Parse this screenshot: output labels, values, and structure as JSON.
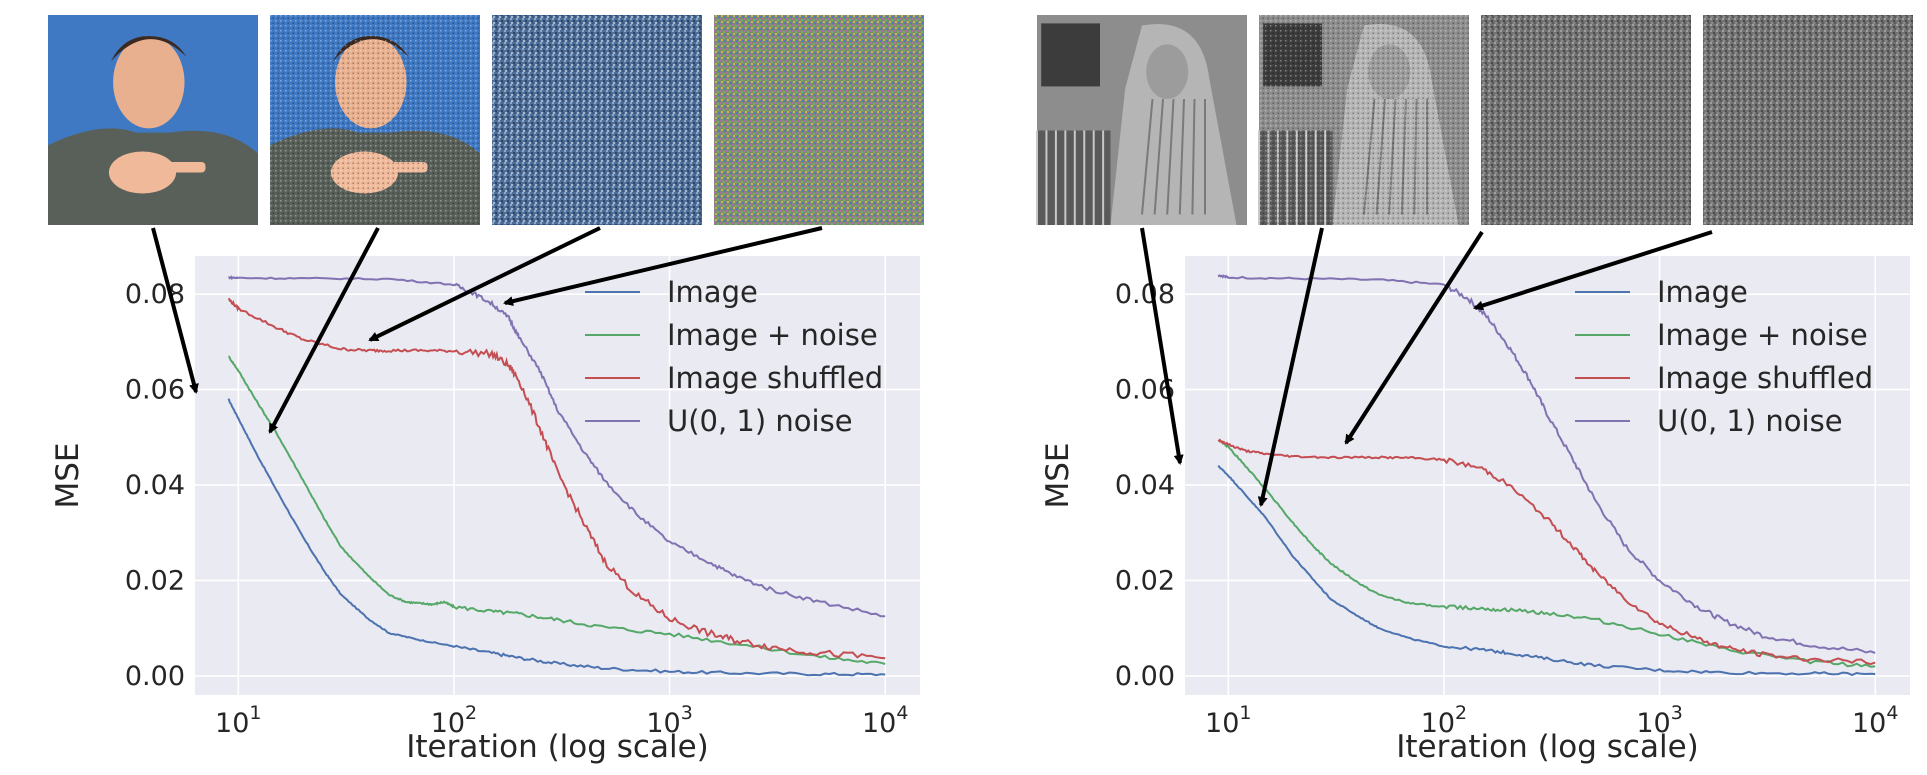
{
  "colors": {
    "image": "#4C72B0",
    "image_noise": "#55A868",
    "image_shuffled": "#C44E52",
    "uniform_noise": "#8172B2",
    "plot_bg": "#EAEAF2",
    "grid": "#FFFFFF",
    "arrow": "#000000"
  },
  "thumbnails": {
    "left": [
      {
        "name": "portrait-image",
        "kind": "color-photo"
      },
      {
        "name": "portrait-noisy",
        "kind": "color-photo-noisy"
      },
      {
        "name": "portrait-shuffled",
        "kind": "shuffled"
      },
      {
        "name": "uniform-noise-color",
        "kind": "color-noise"
      }
    ],
    "right": [
      {
        "name": "barbara-image",
        "kind": "gray-photo"
      },
      {
        "name": "barbara-noisy",
        "kind": "gray-photo-noisy"
      },
      {
        "name": "barbara-shuffled",
        "kind": "gray-noise"
      },
      {
        "name": "uniform-noise-gray",
        "kind": "gray-noise"
      }
    ]
  },
  "chart_data": [
    {
      "type": "line",
      "xlabel": "Iteration (log scale)",
      "ylabel": "MSE",
      "xscale": "log",
      "xlim": [
        6.3,
        14500
      ],
      "ylim": [
        -0.004,
        0.088
      ],
      "yticks": [
        "0.00",
        "0.02",
        "0.04",
        "0.06",
        "0.08"
      ],
      "yticks_values": [
        0,
        0.02,
        0.04,
        0.06,
        0.08
      ],
      "xticks": [
        {
          "base": "10",
          "exp": "1"
        },
        {
          "base": "10",
          "exp": "2"
        },
        {
          "base": "10",
          "exp": "3"
        },
        {
          "base": "10",
          "exp": "4"
        }
      ],
      "xticks_values": [
        10,
        100,
        1000,
        10000
      ],
      "grid": true,
      "legend_position": "top-right",
      "series": [
        {
          "name": "Image",
          "key": "image",
          "x": [
            9,
            10,
            12,
            15,
            20,
            25,
            30,
            40,
            50,
            70,
            100,
            150,
            200,
            300,
            500,
            1000,
            2000,
            5000,
            10000
          ],
          "y": [
            0.058,
            0.054,
            0.047,
            0.039,
            0.029,
            0.022,
            0.017,
            0.012,
            0.009,
            0.0075,
            0.0062,
            0.0048,
            0.0038,
            0.0026,
            0.0016,
            0.0009,
            0.0006,
            0.0004,
            0.0003
          ],
          "noise": 0.0003
        },
        {
          "name": "Image + noise",
          "key": "image_noise",
          "x": [
            9,
            10,
            12,
            15,
            20,
            25,
            30,
            40,
            50,
            60,
            70,
            80,
            90,
            100,
            150,
            200,
            300,
            500,
            1000,
            2000,
            5000,
            10000
          ],
          "y": [
            0.067,
            0.064,
            0.058,
            0.051,
            0.041,
            0.033,
            0.027,
            0.021,
            0.017,
            0.0155,
            0.0152,
            0.015,
            0.0155,
            0.0145,
            0.0135,
            0.013,
            0.0118,
            0.0102,
            0.0088,
            0.0068,
            0.004,
            0.0025
          ],
          "noise": 0.0004
        },
        {
          "name": "Image shuffled",
          "key": "image_shuffled",
          "x": [
            9,
            10,
            15,
            20,
            30,
            40,
            50,
            70,
            100,
            150,
            180,
            200,
            250,
            300,
            400,
            500,
            700,
            1000,
            1500,
            2000,
            3000,
            5000,
            10000
          ],
          "y": [
            0.079,
            0.077,
            0.073,
            0.0705,
            0.0685,
            0.0682,
            0.0682,
            0.0682,
            0.0681,
            0.0675,
            0.065,
            0.062,
            0.052,
            0.043,
            0.032,
            0.024,
            0.017,
            0.012,
            0.009,
            0.0075,
            0.006,
            0.0048,
            0.0037
          ],
          "noise": 0.0007
        },
        {
          "name": "U(0, 1) noise",
          "key": "uniform_noise",
          "x": [
            9,
            10,
            20,
            50,
            100,
            120,
            150,
            180,
            200,
            250,
            300,
            400,
            500,
            700,
            1000,
            1500,
            2000,
            3000,
            5000,
            10000
          ],
          "y": [
            0.0835,
            0.0834,
            0.0833,
            0.0832,
            0.082,
            0.0805,
            0.078,
            0.075,
            0.071,
            0.064,
            0.056,
            0.047,
            0.041,
            0.034,
            0.028,
            0.024,
            0.021,
            0.018,
            0.0155,
            0.0125
          ],
          "noise": 0.0004
        }
      ]
    },
    {
      "type": "line",
      "xlabel": "Iteration (log scale)",
      "ylabel": "MSE",
      "xscale": "log",
      "xlim": [
        6.3,
        14500
      ],
      "ylim": [
        -0.004,
        0.088
      ],
      "yticks": [
        "0.00",
        "0.02",
        "0.04",
        "0.06",
        "0.08"
      ],
      "yticks_values": [
        0,
        0.02,
        0.04,
        0.06,
        0.08
      ],
      "xticks": [
        {
          "base": "10",
          "exp": "1"
        },
        {
          "base": "10",
          "exp": "2"
        },
        {
          "base": "10",
          "exp": "3"
        },
        {
          "base": "10",
          "exp": "4"
        }
      ],
      "xticks_values": [
        10,
        100,
        1000,
        10000
      ],
      "grid": true,
      "legend_position": "top-right",
      "series": [
        {
          "name": "Image",
          "key": "image",
          "x": [
            9,
            10,
            12,
            15,
            20,
            25,
            30,
            40,
            50,
            70,
            100,
            150,
            200,
            300,
            500,
            1000,
            2000,
            5000,
            10000
          ],
          "y": [
            0.044,
            0.042,
            0.038,
            0.033,
            0.025,
            0.02,
            0.016,
            0.0125,
            0.01,
            0.0078,
            0.0062,
            0.0055,
            0.0048,
            0.0036,
            0.0022,
            0.0012,
            0.0007,
            0.0005,
            0.0004
          ],
          "noise": 0.0003
        },
        {
          "name": "Image + noise",
          "key": "image_noise",
          "x": [
            9,
            10,
            12,
            15,
            20,
            25,
            30,
            40,
            50,
            70,
            100,
            150,
            200,
            300,
            500,
            1000,
            2000,
            5000,
            10000
          ],
          "y": [
            0.0495,
            0.048,
            0.044,
            0.039,
            0.032,
            0.027,
            0.0235,
            0.0195,
            0.017,
            0.0152,
            0.0145,
            0.0142,
            0.0138,
            0.0132,
            0.0118,
            0.0088,
            0.0055,
            0.003,
            0.002
          ],
          "noise": 0.0004
        },
        {
          "name": "Image shuffled",
          "key": "image_shuffled",
          "x": [
            9,
            10,
            12,
            15,
            20,
            30,
            50,
            70,
            100,
            150,
            200,
            300,
            400,
            500,
            700,
            1000,
            1500,
            2000,
            3000,
            5000,
            10000
          ],
          "y": [
            0.0495,
            0.0485,
            0.0472,
            0.0465,
            0.046,
            0.0458,
            0.0458,
            0.0457,
            0.0453,
            0.0435,
            0.04,
            0.033,
            0.027,
            0.022,
            0.016,
            0.011,
            0.0078,
            0.006,
            0.0045,
            0.0035,
            0.0028
          ],
          "noise": 0.0005
        },
        {
          "name": "U(0, 1) noise",
          "key": "uniform_noise",
          "x": [
            9,
            10,
            20,
            50,
            100,
            130,
            160,
            200,
            250,
            300,
            400,
            500,
            700,
            1000,
            1500,
            2000,
            3000,
            5000,
            10000
          ],
          "y": [
            0.084,
            0.0835,
            0.0833,
            0.083,
            0.082,
            0.079,
            0.075,
            0.069,
            0.062,
            0.055,
            0.045,
            0.037,
            0.027,
            0.02,
            0.0145,
            0.0115,
            0.0085,
            0.0065,
            0.0048
          ],
          "noise": 0.0005
        }
      ]
    }
  ]
}
